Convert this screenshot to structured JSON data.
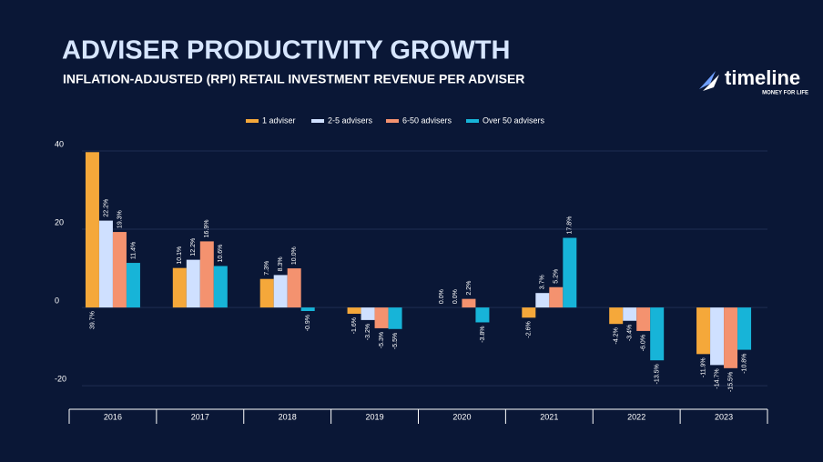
{
  "logo": {
    "name": "timeline",
    "tagline": "MONEY FOR LIFE"
  },
  "chart_data": {
    "type": "bar",
    "title": "ADVISER PRODUCTIVITY GROWTH",
    "subtitle": "INFLATION-ADJUSTED (RPI) RETAIL INVESTMENT REVENUE PER ADVISER",
    "categories": [
      "2016",
      "2017",
      "2018",
      "2019",
      "2020",
      "2021",
      "2022",
      "2023"
    ],
    "series": [
      {
        "name": "1 adviser",
        "color": "#f5a83a",
        "values": [
          39.7,
          10.1,
          7.3,
          -1.6,
          0.0,
          -2.6,
          -4.2,
          -11.9
        ],
        "value_labels": [
          "39.7%",
          "10.1%",
          "7.3%",
          "-1.6%",
          "0.0%",
          "-2.6%",
          "-4.2%",
          "-11.9%"
        ]
      },
      {
        "name": "2-5 advisers",
        "color": "#cfe0ff",
        "values": [
          22.2,
          12.2,
          8.3,
          -3.2,
          0.0,
          3.7,
          -3.4,
          -14.7
        ],
        "value_labels": [
          "22.2%",
          "12.2%",
          "8.3%",
          "-3.2%",
          "0.0%",
          "3.7%",
          "-3.4%",
          "-14.7%"
        ]
      },
      {
        "name": "6-50 advisers",
        "color": "#f4926f",
        "values": [
          19.3,
          16.9,
          10.0,
          -5.3,
          2.2,
          5.2,
          -6.0,
          -15.5
        ],
        "value_labels": [
          "19.3%",
          "16.9%",
          "10.0%",
          "-5.3%",
          "2.2%",
          "5.2%",
          "-6.0%",
          "-15.5%"
        ]
      },
      {
        "name": "Over 50 advisers",
        "color": "#17b4d8",
        "values": [
          11.4,
          10.6,
          -0.9,
          -5.5,
          -3.8,
          17.8,
          -13.5,
          -10.8
        ],
        "value_labels": [
          "11.4%",
          "10.6%",
          "-0.9%",
          "-5.5%",
          "-3.8%",
          "17.8%",
          "-13.5%",
          "-10.8%"
        ]
      }
    ],
    "ylim": [
      -26,
      40
    ],
    "yticks": [
      -20,
      0,
      20,
      40
    ],
    "grid": true,
    "legend": "top"
  }
}
